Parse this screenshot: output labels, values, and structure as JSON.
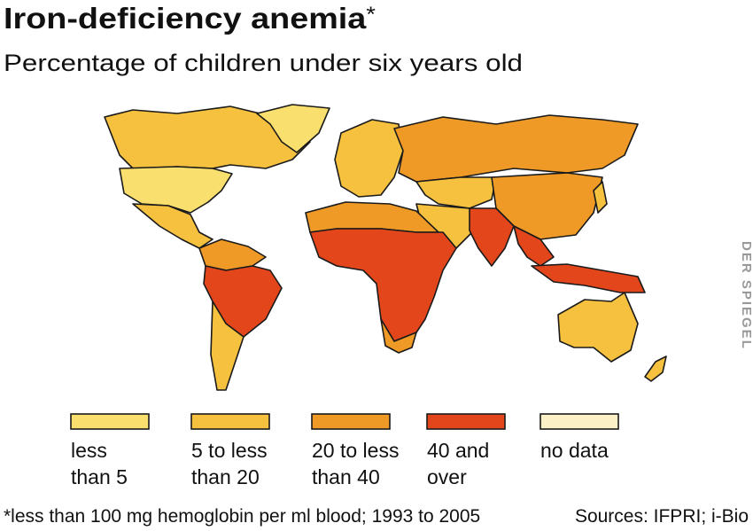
{
  "header": {
    "title": "Iron-deficiency anemia",
    "title_mark": "*",
    "subtitle": "Percentage of children under six years old"
  },
  "legend": {
    "items": [
      {
        "lines": [
          "less",
          "than 5"
        ],
        "color": "#f9df6e"
      },
      {
        "lines": [
          "5 to less",
          "than 20"
        ],
        "color": "#f5c13f"
      },
      {
        "lines": [
          "20 to less",
          "than 40"
        ],
        "color": "#ef9a26"
      },
      {
        "lines": [
          "40 and",
          "over"
        ],
        "color": "#e4461c"
      },
      {
        "lines": [
          "no data"
        ],
        "color": "#fbf0c6"
      }
    ]
  },
  "footnote": "*less than 100 mg hemoglobin per ml blood; 1993 to 2005",
  "sources": "Sources: IFPRI; i-Bio",
  "watermark": "DER SPIEGEL"
}
